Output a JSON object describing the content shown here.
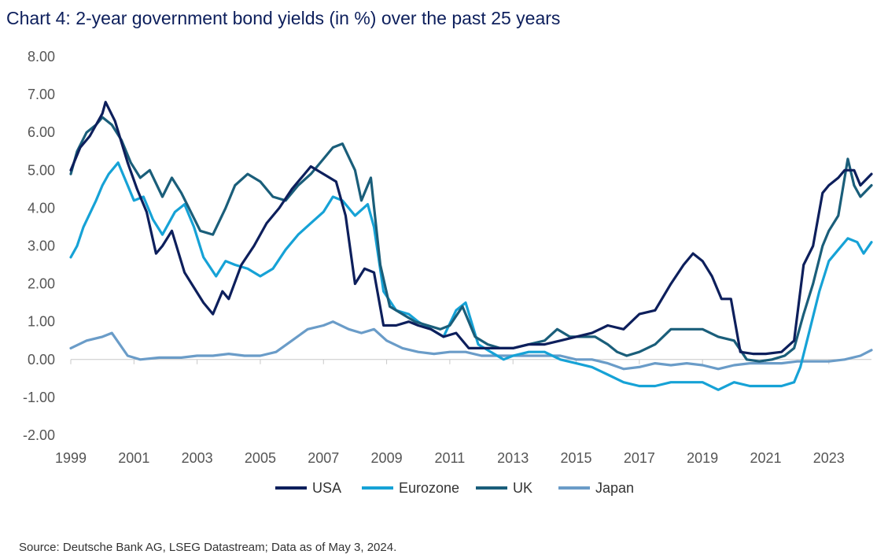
{
  "title": "Chart 4: 2-year government bond yields (in %) over the past 25 years",
  "source": "Source: Deutsche Bank AG, LSEG Datastream; Data as of May 3, 2024.",
  "chart_data": {
    "type": "line",
    "title": "Chart 4: 2-year government bond yields (in %) over the past 25 years",
    "xlabel": "",
    "ylabel": "",
    "xlim": [
      1999,
      2024.35
    ],
    "ylim": [
      -2,
      8
    ],
    "y_ticks": [
      "8.00",
      "7.00",
      "6.00",
      "5.00",
      "4.00",
      "3.00",
      "2.00",
      "1.00",
      "0.00",
      "-1.00",
      "-2.00"
    ],
    "x_ticks": [
      "1999",
      "2001",
      "2003",
      "2005",
      "2007",
      "2009",
      "2011",
      "2013",
      "2015",
      "2017",
      "2019",
      "2021",
      "2023"
    ],
    "grid": false,
    "legend_position": "bottom",
    "series": [
      {
        "name": "USA",
        "color": "#0d1f5c",
        "x": [
          1999,
          1999.3,
          1999.6,
          2000,
          2000.1,
          2000.4,
          2000.8,
          2001.1,
          2001.4,
          2001.7,
          2001.9,
          2002.2,
          2002.6,
          2002.9,
          2003.2,
          2003.5,
          2003.8,
          2004.0,
          2004.4,
          2004.8,
          2005.2,
          2005.6,
          2006.0,
          2006.4,
          2006.6,
          2007.0,
          2007.4,
          2007.7,
          2008.0,
          2008.3,
          2008.6,
          2008.9,
          2009.3,
          2009.7,
          2010.0,
          2010.4,
          2010.8,
          2011.2,
          2011.6,
          2012.0,
          2012.5,
          2013.0,
          2013.5,
          2014.0,
          2014.5,
          2015.0,
          2015.5,
          2016.0,
          2016.5,
          2017.0,
          2017.5,
          2018.0,
          2018.4,
          2018.7,
          2019.0,
          2019.3,
          2019.6,
          2019.9,
          2020.2,
          2020.6,
          2021.0,
          2021.5,
          2021.9,
          2022.2,
          2022.5,
          2022.8,
          2023.0,
          2023.3,
          2023.5,
          2023.8,
          2024.0,
          2024.35
        ],
        "values": [
          5.0,
          5.6,
          5.9,
          6.5,
          6.8,
          6.3,
          5.2,
          4.5,
          3.9,
          2.8,
          3.0,
          3.4,
          2.3,
          1.9,
          1.5,
          1.2,
          1.8,
          1.6,
          2.5,
          3.0,
          3.6,
          4.0,
          4.5,
          4.9,
          5.1,
          4.9,
          4.7,
          3.8,
          2.0,
          2.4,
          2.3,
          0.9,
          0.9,
          1.0,
          0.9,
          0.8,
          0.6,
          0.7,
          0.3,
          0.3,
          0.3,
          0.3,
          0.4,
          0.4,
          0.5,
          0.6,
          0.7,
          0.9,
          0.8,
          1.2,
          1.3,
          2.0,
          2.5,
          2.8,
          2.6,
          2.2,
          1.6,
          1.6,
          0.2,
          0.15,
          0.15,
          0.2,
          0.5,
          2.5,
          3.0,
          4.4,
          4.6,
          4.8,
          5.0,
          5.0,
          4.6,
          4.9
        ]
      },
      {
        "name": "Eurozone",
        "color": "#16a2d6",
        "x": [
          1999,
          1999.2,
          1999.4,
          1999.8,
          2000.0,
          2000.2,
          2000.5,
          2000.8,
          2001.0,
          2001.3,
          2001.6,
          2001.9,
          2002.3,
          2002.6,
          2002.9,
          2003.2,
          2003.6,
          2003.9,
          2004.2,
          2004.6,
          2005.0,
          2005.4,
          2005.8,
          2006.2,
          2006.6,
          2007.0,
          2007.3,
          2007.6,
          2008.0,
          2008.4,
          2008.6,
          2008.9,
          2009.3,
          2009.7,
          2010.0,
          2010.4,
          2010.8,
          2011.2,
          2011.5,
          2011.9,
          2012.3,
          2012.7,
          2013.0,
          2013.5,
          2014.0,
          2014.5,
          2015.0,
          2015.5,
          2016.0,
          2016.5,
          2017.0,
          2017.5,
          2018.0,
          2018.5,
          2019.0,
          2019.5,
          2020.0,
          2020.5,
          2021.0,
          2021.5,
          2021.9,
          2022.1,
          2022.4,
          2022.7,
          2023.0,
          2023.3,
          2023.6,
          2023.9,
          2024.1,
          2024.35
        ],
        "values": [
          2.7,
          3.0,
          3.5,
          4.2,
          4.6,
          4.9,
          5.2,
          4.6,
          4.2,
          4.3,
          3.7,
          3.3,
          3.9,
          4.1,
          3.5,
          2.7,
          2.2,
          2.6,
          2.5,
          2.4,
          2.2,
          2.4,
          2.9,
          3.3,
          3.6,
          3.9,
          4.3,
          4.2,
          3.8,
          4.1,
          3.5,
          1.8,
          1.3,
          1.2,
          1.0,
          0.8,
          0.6,
          1.3,
          1.5,
          0.4,
          0.2,
          0.0,
          0.1,
          0.2,
          0.2,
          0.0,
          -0.1,
          -0.2,
          -0.4,
          -0.6,
          -0.7,
          -0.7,
          -0.6,
          -0.6,
          -0.6,
          -0.8,
          -0.6,
          -0.7,
          -0.7,
          -0.7,
          -0.6,
          -0.2,
          0.8,
          1.8,
          2.6,
          2.9,
          3.2,
          3.1,
          2.8,
          3.1
        ]
      },
      {
        "name": "UK",
        "color": "#1a5e7a",
        "x": [
          1999,
          1999.2,
          1999.5,
          1999.8,
          2000.0,
          2000.3,
          2000.6,
          2000.9,
          2001.2,
          2001.5,
          2001.9,
          2002.2,
          2002.5,
          2002.8,
          2003.1,
          2003.5,
          2003.9,
          2004.2,
          2004.6,
          2005.0,
          2005.4,
          2005.8,
          2006.2,
          2006.6,
          2007.0,
          2007.3,
          2007.6,
          2008.0,
          2008.2,
          2008.5,
          2008.8,
          2009.1,
          2009.5,
          2009.9,
          2010.3,
          2010.7,
          2011.0,
          2011.4,
          2011.8,
          2012.2,
          2012.6,
          2013.0,
          2013.5,
          2014.0,
          2014.4,
          2014.8,
          2015.2,
          2015.6,
          2016.0,
          2016.3,
          2016.6,
          2017.0,
          2017.5,
          2018.0,
          2018.5,
          2019.0,
          2019.5,
          2020.0,
          2020.4,
          2020.8,
          2021.2,
          2021.6,
          2021.9,
          2022.2,
          2022.5,
          2022.8,
          2023.0,
          2023.3,
          2023.6,
          2023.8,
          2024.0,
          2024.35
        ],
        "values": [
          4.9,
          5.5,
          6.0,
          6.2,
          6.4,
          6.2,
          5.8,
          5.2,
          4.8,
          5.0,
          4.3,
          4.8,
          4.4,
          3.9,
          3.4,
          3.3,
          4.0,
          4.6,
          4.9,
          4.7,
          4.3,
          4.2,
          4.6,
          4.9,
          5.3,
          5.6,
          5.7,
          5.0,
          4.2,
          4.8,
          2.5,
          1.4,
          1.2,
          1.0,
          0.9,
          0.8,
          0.9,
          1.4,
          0.6,
          0.4,
          0.3,
          0.3,
          0.4,
          0.5,
          0.8,
          0.6,
          0.6,
          0.6,
          0.4,
          0.2,
          0.1,
          0.2,
          0.4,
          0.8,
          0.8,
          0.8,
          0.6,
          0.5,
          0.0,
          -0.05,
          0.0,
          0.1,
          0.3,
          1.2,
          2.0,
          3.0,
          3.4,
          3.8,
          5.3,
          4.6,
          4.3,
          4.6
        ]
      },
      {
        "name": "Japan",
        "color": "#6a9cc8",
        "x": [
          1999,
          1999.5,
          2000,
          2000.3,
          2000.8,
          2001.2,
          2001.8,
          2002.5,
          2003.0,
          2003.5,
          2004.0,
          2004.5,
          2005.0,
          2005.5,
          2006.0,
          2006.5,
          2007.0,
          2007.3,
          2007.8,
          2008.2,
          2008.6,
          2009.0,
          2009.5,
          2010.0,
          2010.5,
          2011.0,
          2011.5,
          2012.0,
          2012.5,
          2013.0,
          2013.5,
          2014.0,
          2014.5,
          2015.0,
          2015.5,
          2016.0,
          2016.5,
          2017.0,
          2017.5,
          2018.0,
          2018.5,
          2019.0,
          2019.5,
          2020.0,
          2020.5,
          2021.0,
          2021.5,
          2022.0,
          2022.5,
          2023.0,
          2023.5,
          2024.0,
          2024.35
        ],
        "values": [
          0.3,
          0.5,
          0.6,
          0.7,
          0.1,
          0.0,
          0.05,
          0.05,
          0.1,
          0.1,
          0.15,
          0.1,
          0.1,
          0.2,
          0.5,
          0.8,
          0.9,
          1.0,
          0.8,
          0.7,
          0.8,
          0.5,
          0.3,
          0.2,
          0.15,
          0.2,
          0.2,
          0.1,
          0.1,
          0.1,
          0.1,
          0.1,
          0.1,
          0.0,
          0.0,
          -0.1,
          -0.25,
          -0.2,
          -0.1,
          -0.15,
          -0.1,
          -0.15,
          -0.25,
          -0.15,
          -0.1,
          -0.1,
          -0.1,
          -0.05,
          -0.05,
          -0.05,
          0.0,
          0.1,
          0.25
        ]
      }
    ]
  }
}
